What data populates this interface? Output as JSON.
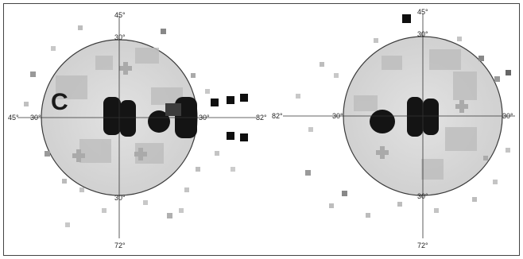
{
  "figure_letter": "C",
  "left_field": {
    "labels": {
      "top": "45°",
      "upper": "30°",
      "left_outer": "45°",
      "left_inner": "30°",
      "right_inner": "30°",
      "right_outer": "82°",
      "lower": "30°",
      "bottom": "72°"
    }
  },
  "right_field": {
    "labels": {
      "top": "45°",
      "upper": "30°",
      "left_outer": "82°",
      "left_inner": "30°",
      "right_inner": "30°",
      "lower": "30°",
      "bottom": "72°"
    }
  },
  "colors": {
    "disc_fill": "#d8d8d8",
    "scotoma": "#141414",
    "outline": "#3a3a3a"
  }
}
